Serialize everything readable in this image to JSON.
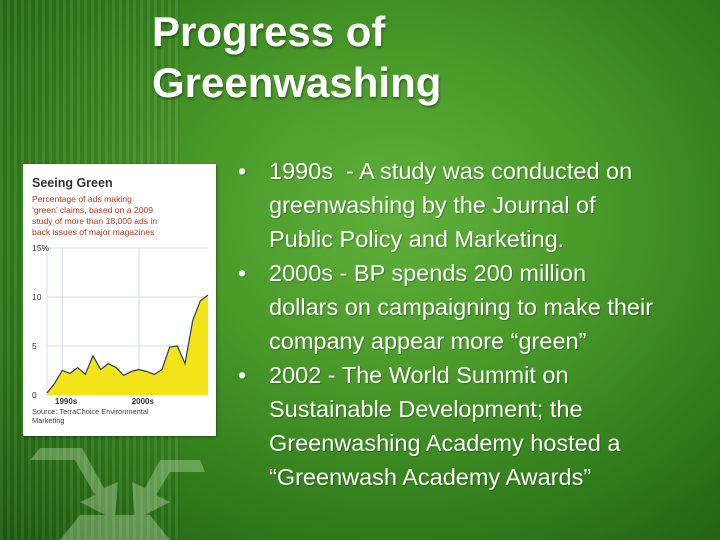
{
  "slide": {
    "title_lines": [
      "Progress of",
      "Greenwashing"
    ],
    "bullets": [
      {
        "marker": "•",
        "lines": [
          "1990s  - A study was conducted on",
          "greenwashing by the Journal of",
          "Public Policy and Marketing."
        ]
      },
      {
        "marker": "•",
        "lines": [
          "2000s - BP spends 200 million",
          "dollars on campaigning to make their",
          "company appear more “green”"
        ]
      },
      {
        "marker": "•",
        "lines": [
          "2002 - The World Summit on",
          "Sustainable Development; the",
          "Greenwashing Academy hosted a",
          "“Greenwash Academy Awards”"
        ]
      }
    ],
    "colors": {
      "background": "#4a9a2a",
      "title_text": "#ffffff",
      "body_text": "#ffffff",
      "chart_fill": "#f3e41a"
    },
    "decorative_icon": "recycle-icon"
  },
  "chart_data": {
    "type": "area",
    "title": "Seeing Green",
    "subtitle": "Percentage of ads making ‘green’ claims, based on a 2009 study of more than 18,000 ads in back issues of major magazines",
    "source": "Source: TerraChoice Environmental Marketing",
    "x": [
      1988,
      1989,
      1990,
      1991,
      1992,
      1993,
      1994,
      1995,
      1996,
      1997,
      1998,
      1999,
      2000,
      2001,
      2002,
      2003,
      2004,
      2005,
      2006,
      2007,
      2008,
      2009
    ],
    "values": [
      0.2,
      1.2,
      2.5,
      2.2,
      2.8,
      2.1,
      4.0,
      2.6,
      3.2,
      2.8,
      2.0,
      2.4,
      2.6,
      2.4,
      2.1,
      2.6,
      4.9,
      5.0,
      3.2,
      7.6,
      9.6,
      10.2
    ],
    "x_tick_labels": [
      "1990s",
      "2000s"
    ],
    "y_tick_labels": [
      "0",
      "5",
      "10",
      "15%"
    ],
    "ylim": [
      0,
      15
    ],
    "grid": true
  }
}
